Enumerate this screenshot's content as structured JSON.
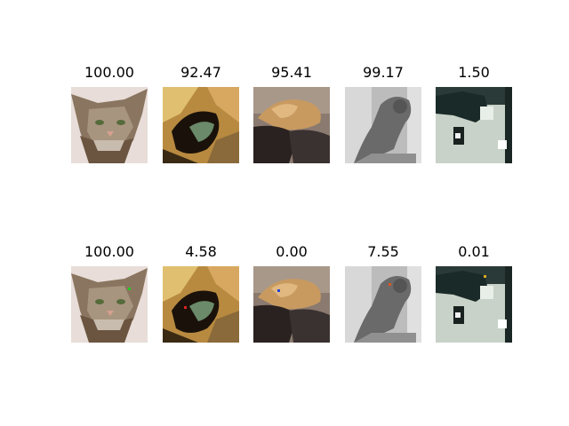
{
  "rows": [
    {
      "cells": [
        {
          "score": "100.00",
          "subject": "cat-face-icon"
        },
        {
          "score": "92.47",
          "subject": "cat-closeup-icon"
        },
        {
          "score": "95.41",
          "subject": "cat-lying-icon"
        },
        {
          "score": "99.17",
          "subject": "cat-grayscale-icon"
        },
        {
          "score": "1.50",
          "subject": "cat-dark-icon"
        }
      ]
    },
    {
      "cells": [
        {
          "score": "100.00",
          "subject": "cat-face-icon",
          "marker_color": "#22cc22"
        },
        {
          "score": "4.58",
          "subject": "cat-closeup-icon",
          "marker_color": "#dd2222"
        },
        {
          "score": "0.00",
          "subject": "cat-lying-icon",
          "marker_color": "#2244dd"
        },
        {
          "score": "7.55",
          "subject": "cat-grayscale-icon",
          "marker_color": "#dd5522"
        },
        {
          "score": "0.01",
          "subject": "cat-dark-icon",
          "marker_color": "#ddaa22"
        }
      ]
    }
  ]
}
